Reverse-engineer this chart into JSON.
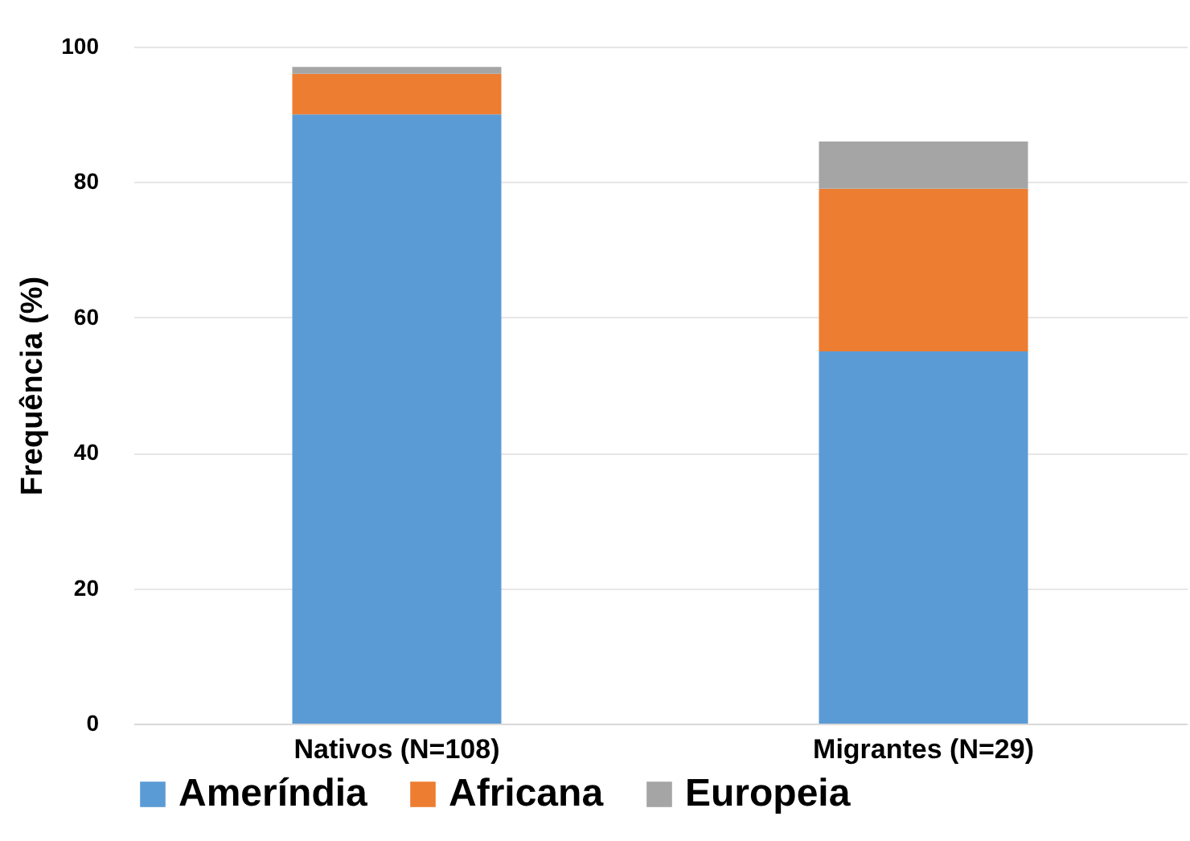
{
  "chart_data": {
    "type": "bar",
    "stacked": true,
    "ylabel": "Frequência (%)",
    "categories": [
      "Nativos (N=108)",
      "Migrantes (N=29)"
    ],
    "series": [
      {
        "name": "Ameríndia",
        "color": "#5b9bd5",
        "values": [
          90,
          55
        ]
      },
      {
        "name": "Africana",
        "color": "#ed7d31",
        "values": [
          6,
          24
        ]
      },
      {
        "name": "Europeia",
        "color": "#a5a5a5",
        "values": [
          1,
          7
        ]
      }
    ],
    "ylim": [
      0,
      100
    ],
    "yticks": [
      0,
      20,
      40,
      60,
      80,
      100
    ],
    "grid": "y",
    "legend": "bottom"
  }
}
